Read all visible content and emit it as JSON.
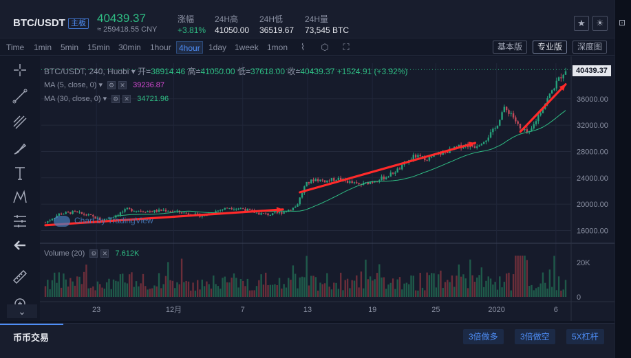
{
  "header": {
    "pair": "BTC/USDT",
    "badge": "主板",
    "last_price": "40439.37",
    "cny_price": "≈ 259418.55 CNY",
    "stats": [
      {
        "label": "涨幅",
        "value": "+3.81%"
      },
      {
        "label": "24H高",
        "value": "41050.00"
      },
      {
        "label": "24H低",
        "value": "36519.67"
      },
      {
        "label": "24H量",
        "value": "73,545 BTC"
      }
    ],
    "icons": [
      "star-icon",
      "brightness-icon"
    ]
  },
  "toolbar": {
    "timeframes": [
      "Time",
      "1min",
      "5min",
      "15min",
      "30min",
      "1hour",
      "4hour",
      "1day",
      "1week",
      "1mon"
    ],
    "active_timeframe": "4hour",
    "icons": [
      "candle-type-icon",
      "indicator-icon",
      "fullscreen-icon"
    ],
    "views": [
      "基本版",
      "专业版",
      "深度图"
    ],
    "active_view": "专业版"
  },
  "tools": [
    "crosshair-icon",
    "trend-line-icon",
    "fib-icon",
    "brush-icon",
    "text-icon",
    "pattern-icon",
    "measure-icon",
    "back-arrow-icon",
    "ruler-icon",
    "zoom-icon"
  ],
  "legend": {
    "symbol": "BTC/USDT, 240, Huobi",
    "open_label": "开=",
    "open": "38914.46",
    "high_label": "高=",
    "high": "41050.00",
    "low_label": "低=",
    "low": "37618.00",
    "close_label": "收=",
    "close": "40439.37",
    "change": "+1524.91 (+3.92%)",
    "ma5": "MA (5, close, 0)",
    "ma5_value": "39236.87",
    "ma30": "MA (30, close, 0)",
    "ma30_value": "34721.96",
    "volume": "Volume (20)",
    "volume_value": "7.612K",
    "current_price": "40439.37",
    "watermark": "Chart by TradingView"
  },
  "chart_data": {
    "type": "candlestick",
    "x_ticks": [
      "23",
      "12月",
      "7",
      "13",
      "19",
      "25",
      "2020",
      "6"
    ],
    "y_ticks": [
      16000,
      20000,
      24000,
      28000,
      32000,
      36000
    ],
    "y_tick_labels": [
      "16000.00",
      "20000.00",
      "24000.00",
      "28000.00",
      "32000.00",
      "36000.00"
    ],
    "ylim": [
      14800,
      41400
    ],
    "volume_ticks": [
      "20K",
      "0"
    ],
    "colors": {
      "up": "#26a17b",
      "down": "#c24a5a",
      "ma5": "#d64ad4",
      "ma30": "#2fbd84",
      "annotation": "#ff2a2a"
    },
    "price_path": [
      [
        0,
        17200
      ],
      [
        12,
        18500
      ],
      [
        25,
        18800
      ],
      [
        38,
        18300
      ],
      [
        50,
        17600
      ],
      [
        60,
        18100
      ],
      [
        72,
        19200
      ],
      [
        85,
        19000
      ],
      [
        95,
        18900
      ],
      [
        105,
        19100
      ],
      [
        118,
        18800
      ],
      [
        128,
        18500
      ],
      [
        140,
        18200
      ],
      [
        150,
        18900
      ],
      [
        162,
        19500
      ],
      [
        175,
        19300
      ],
      [
        188,
        18600
      ],
      [
        200,
        18400
      ],
      [
        212,
        18900
      ],
      [
        222,
        19700
      ],
      [
        230,
        23000
      ],
      [
        238,
        23800
      ],
      [
        248,
        23500
      ],
      [
        258,
        23900
      ],
      [
        268,
        23400
      ],
      [
        278,
        22900
      ],
      [
        290,
        23500
      ],
      [
        302,
        24200
      ],
      [
        314,
        25500
      ],
      [
        326,
        27300
      ],
      [
        338,
        26900
      ],
      [
        350,
        27700
      ],
      [
        360,
        28300
      ],
      [
        370,
        29000
      ],
      [
        380,
        28800
      ],
      [
        390,
        30000
      ],
      [
        398,
        31500
      ],
      [
        405,
        34500
      ],
      [
        412,
        33800
      ],
      [
        420,
        31300
      ],
      [
        428,
        30700
      ],
      [
        436,
        33500
      ],
      [
        444,
        36000
      ],
      [
        452,
        38500
      ],
      [
        460,
        40439
      ]
    ],
    "annotation_lines": [
      [
        [
          0,
          16800
        ],
        [
          210,
          19200
        ]
      ],
      [
        [
          225,
          21800
        ],
        [
          380,
          29300
        ]
      ],
      [
        [
          420,
          31000
        ],
        [
          460,
          38200
        ]
      ]
    ]
  },
  "bottom": {
    "tab": "币币交易",
    "buttons": [
      "3倍做多",
      "3倍做空",
      "5X杠杆"
    ]
  }
}
